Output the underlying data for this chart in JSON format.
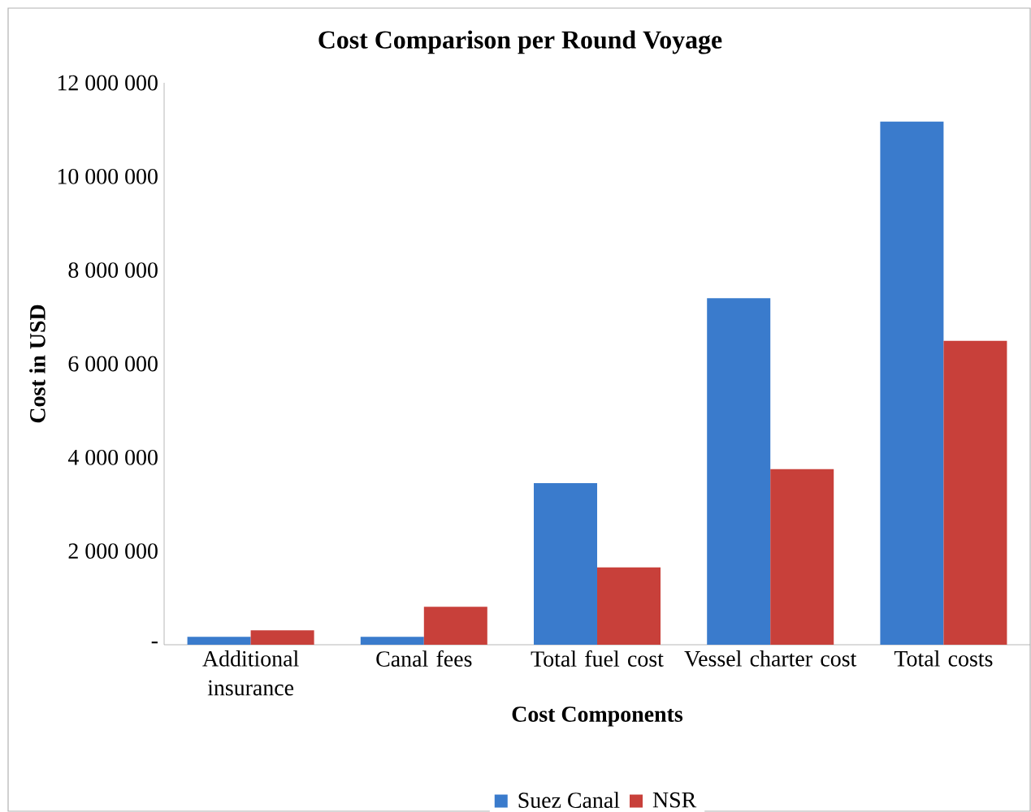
{
  "chart_data": {
    "type": "bar",
    "title": "Cost Comparison per Round Voyage",
    "xlabel": "Cost Components",
    "ylabel": "Cost in USD",
    "categories": [
      "Additional insurance",
      "Canal fees",
      "Total fuel cost",
      "Vessel charter cost",
      "Total costs"
    ],
    "series": [
      {
        "name": "Suez Canal",
        "color": "#3a7bcc",
        "values": [
          170000,
          170000,
          3450000,
          7400000,
          11170000
        ]
      },
      {
        "name": "NSR",
        "color": "#c8403a",
        "values": [
          310000,
          810000,
          1650000,
          3750000,
          6490000
        ]
      }
    ],
    "ylim": [
      0,
      12000000
    ],
    "yticks": [
      {
        "value": 0,
        "label": "-"
      },
      {
        "value": 2000000,
        "label": "2 000 000"
      },
      {
        "value": 4000000,
        "label": "4 000 000"
      },
      {
        "value": 6000000,
        "label": "6 000 000"
      },
      {
        "value": 8000000,
        "label": "8 000 000"
      },
      {
        "value": 10000000,
        "label": "10 000 000"
      },
      {
        "value": 12000000,
        "label": "12 000 000"
      }
    ],
    "legend": "bottom"
  }
}
